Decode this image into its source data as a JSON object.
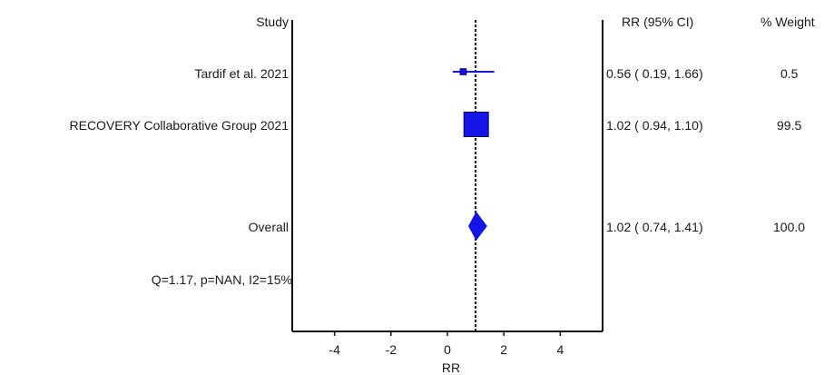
{
  "chart_data": {
    "type": "forest",
    "xlabel": "RR",
    "xlim": [
      -5.5,
      5.5
    ],
    "x_ticks": [
      -4,
      -2,
      0,
      2,
      4
    ],
    "reference_line": 1,
    "headers": {
      "study": "Study",
      "effect": "RR (95% CI)",
      "weight": "% Weight"
    },
    "studies": [
      {
        "name": "Tardif et al. 2021",
        "rr": 0.56,
        "lower": 0.19,
        "upper": 1.66,
        "ci_text": "0.56  ( 0.19,  1.66)",
        "weight": 0.5,
        "weight_text": "0.5"
      },
      {
        "name": "RECOVERY Collaborative Group 2021",
        "rr": 1.02,
        "lower": 0.94,
        "upper": 1.1,
        "ci_text": "1.02  ( 0.94,  1.10)",
        "weight": 99.5,
        "weight_text": "99.5"
      }
    ],
    "overall": {
      "name": "Overall",
      "rr": 1.02,
      "lower": 0.74,
      "upper": 1.41,
      "ci_text": "1.02  ( 0.74,  1.41)",
      "weight_text": "100.0"
    },
    "heterogeneity": "Q=1.17, p=NAN, I2=15%",
    "colors": {
      "marker": "#1414e6",
      "axis": "#111111"
    }
  }
}
